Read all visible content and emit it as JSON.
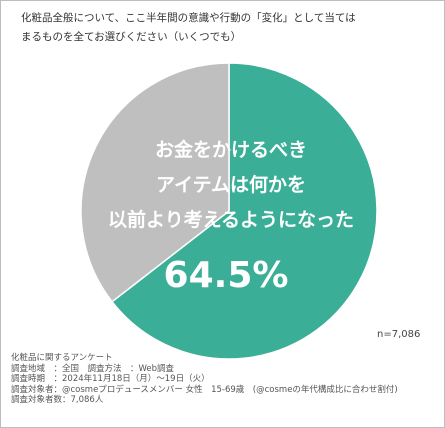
{
  "question": {
    "line1": "化粧品全般について、ここ半年間の意識や行動の「変化」として当ては",
    "line2": "まるものを全てお選びください（いくつでも）"
  },
  "chart_data": {
    "type": "pie",
    "slices": [
      {
        "label": "お金をかけるべきアイテムは何かを以前より考えるようになった",
        "value": 64.5,
        "color": "#3aae96"
      },
      {
        "label": "",
        "value": 35.5,
        "color": "#bfbfbf"
      }
    ],
    "center_label_lines": [
      "お金をかけるべき",
      "アイテムは何かを",
      "以前より考えるようになった"
    ],
    "percent_label": "64.5%",
    "n_label": "n=7,086"
  },
  "survey": {
    "line1": "化粧品に関するアンケート",
    "line2": "調査地域　：全国　調査方法　：Web調査",
    "line3": "調査時期　：2024年11月18日（月）～19日（火）",
    "line4": "調査対象者：@cosmeプロデュースメンバー 女性　15-69歳　(@cosmeの年代構成比に合わせ割付)",
    "line5": "調査対象者数：7,086人"
  }
}
